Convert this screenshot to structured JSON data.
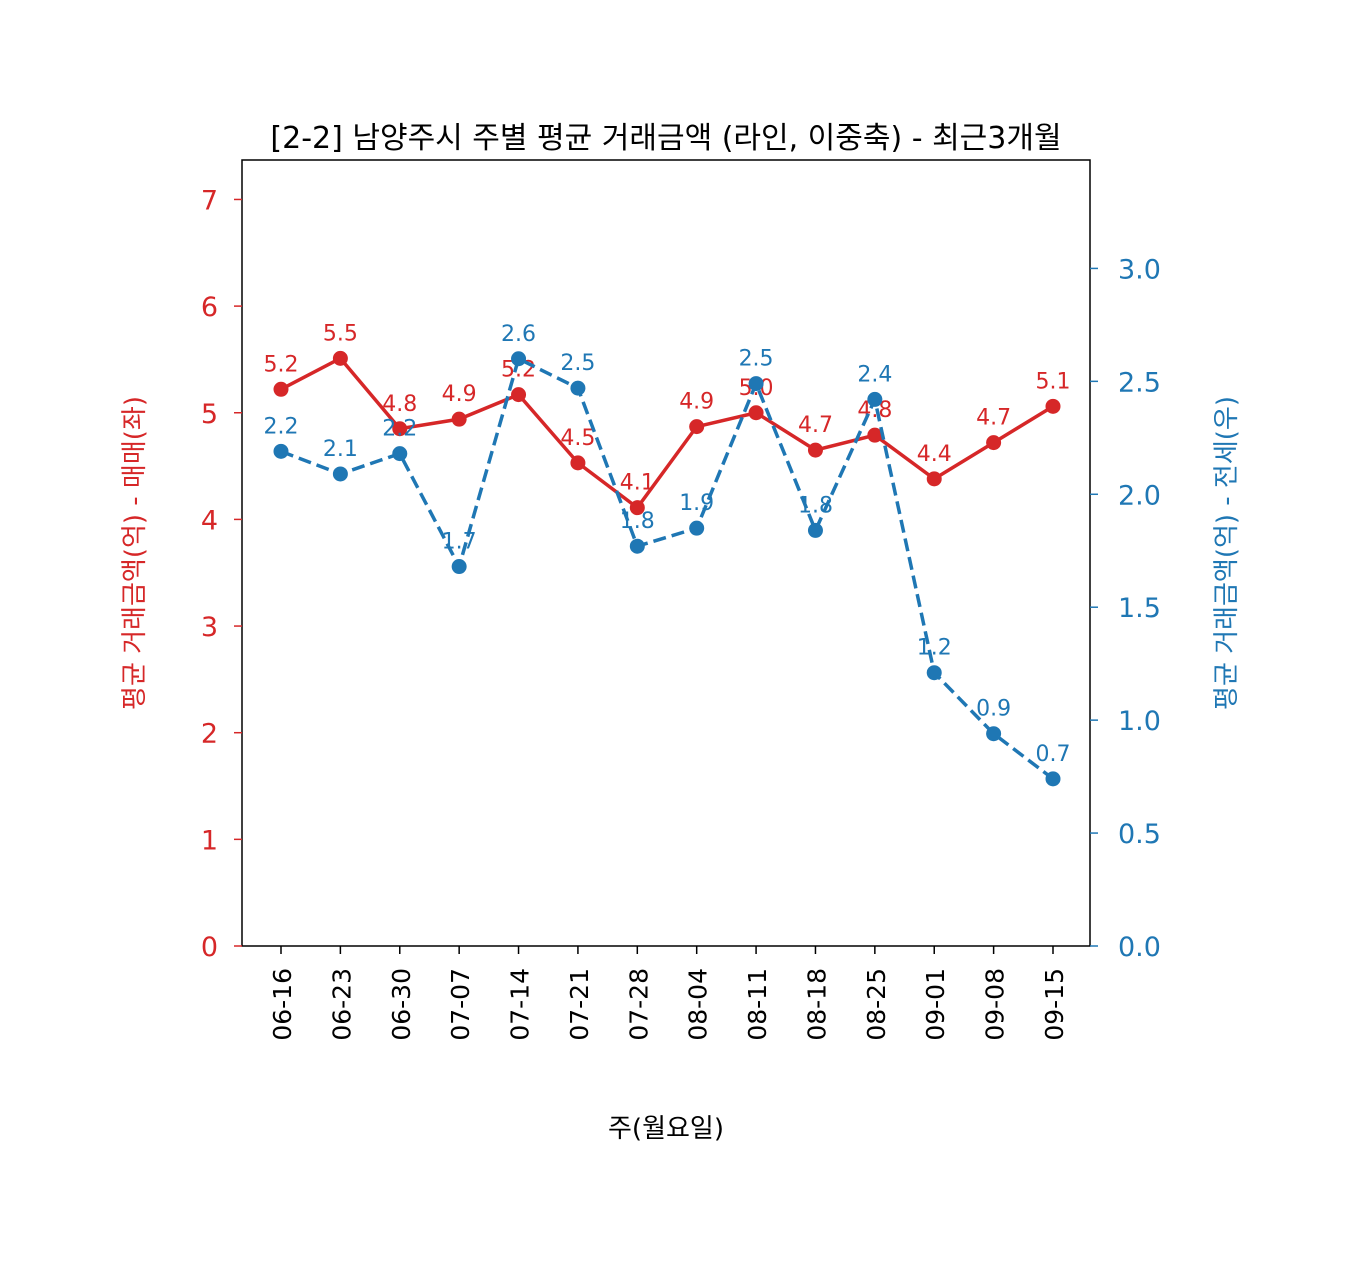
{
  "chart_data": {
    "type": "line",
    "title": "[2-2] 남양주시 주별 평균 거래금액 (라인, 이중축) - 최근3개월",
    "xlabel": "주(월요일)",
    "ylabel_left": "평균 거래금액(억) - 매매(좌)",
    "ylabel_right": "평균 거래금액(억) - 전세(우)",
    "categories": [
      "06-16",
      "06-23",
      "06-30",
      "07-07",
      "07-14",
      "07-21",
      "07-28",
      "08-04",
      "08-11",
      "08-18",
      "08-25",
      "09-01",
      "09-08",
      "09-15"
    ],
    "ylim_left": [
      0,
      7.37
    ],
    "ylim_right": [
      0,
      3.48
    ],
    "yticks_left": [
      "0",
      "1",
      "2",
      "3",
      "4",
      "5",
      "6",
      "7"
    ],
    "yticks_right": [
      "0.0",
      "0.5",
      "1.0",
      "1.5",
      "2.0",
      "2.5",
      "3.0"
    ],
    "grid": false,
    "series": [
      {
        "axis": "left",
        "color": "#d62728",
        "style": "solid",
        "values": [
          5.22,
          5.51,
          4.85,
          4.94,
          5.17,
          4.53,
          4.11,
          4.87,
          5.0,
          4.65,
          4.79,
          4.38,
          4.72,
          5.06
        ]
      },
      {
        "axis": "right",
        "color": "#1f77b4",
        "style": "dashed",
        "values": [
          2.19,
          2.09,
          2.18,
          1.68,
          2.6,
          2.47,
          1.77,
          1.85,
          2.49,
          1.84,
          2.42,
          1.21,
          0.94,
          0.74
        ]
      }
    ]
  }
}
